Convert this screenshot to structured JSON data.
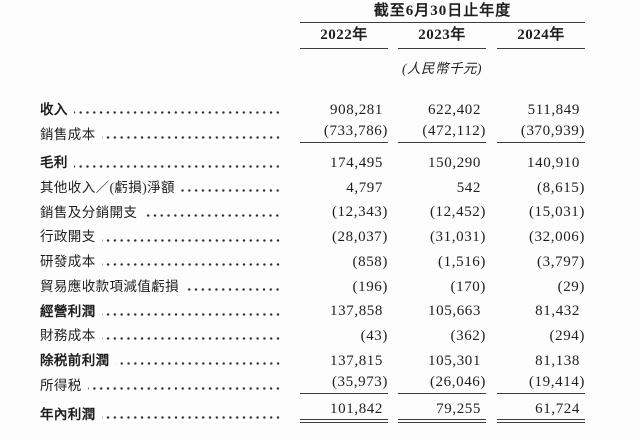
{
  "table": {
    "period_header": "截至6月30日止年度",
    "year_columns": [
      "2022年",
      "2023年",
      "2024年"
    ],
    "unit_note": "(人民幣千元)",
    "rows": [
      {
        "label": "收入",
        "bold": true,
        "values": [
          "908,281",
          "622,402",
          "511,849"
        ]
      },
      {
        "label": "銷售成本",
        "bold": false,
        "values": [
          "(733,786)",
          "(472,112)",
          "(370,939)"
        ],
        "rule_below": "single"
      },
      {
        "label": "毛利",
        "bold": true,
        "values": [
          "174,495",
          "150,290",
          "140,910"
        ]
      },
      {
        "label": "其他收入／(虧損)淨額",
        "bold": false,
        "values": [
          "4,797",
          "542",
          "(8,615)"
        ]
      },
      {
        "label": "銷售及分銷開支",
        "bold": false,
        "values": [
          "(12,343)",
          "(12,452)",
          "(15,031)"
        ]
      },
      {
        "label": "行政開支",
        "bold": false,
        "values": [
          "(28,037)",
          "(31,031)",
          "(32,006)"
        ]
      },
      {
        "label": "研發成本",
        "bold": false,
        "values": [
          "(858)",
          "(1,516)",
          "(3,797)"
        ]
      },
      {
        "label": "貿易應收款項減值虧損",
        "bold": false,
        "values": [
          "(196)",
          "(170)",
          "(29)"
        ]
      },
      {
        "label": "經營利潤",
        "bold": true,
        "values": [
          "137,858",
          "105,663",
          "81,432"
        ]
      },
      {
        "label": "財務成本",
        "bold": false,
        "values": [
          "(43)",
          "(362)",
          "(294)"
        ]
      },
      {
        "label": "除税前利潤",
        "bold": true,
        "values": [
          "137,815",
          "105,301",
          "81,138"
        ]
      },
      {
        "label": "所得税",
        "bold": false,
        "values": [
          "(35,973)",
          "(26,046)",
          "(19,414)"
        ],
        "rule_below": "single"
      },
      {
        "label": "年內利潤",
        "bold": true,
        "values": [
          "101,842",
          "79,255",
          "61,724"
        ],
        "rule_below": "double"
      }
    ]
  }
}
